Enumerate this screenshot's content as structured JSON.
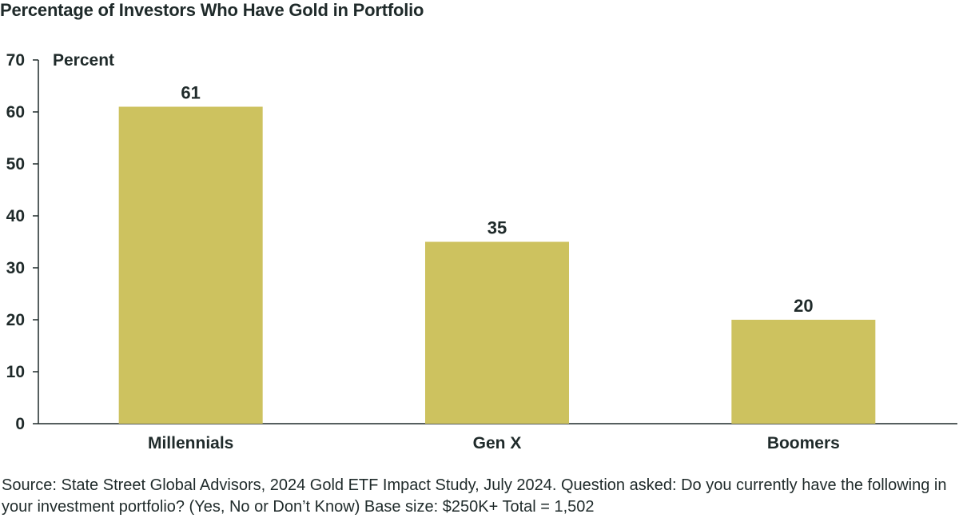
{
  "chart_data": {
    "type": "bar",
    "title": "Percentage of Investors Who Have Gold in Portfolio",
    "ylabel": "Percent",
    "xlabel": "",
    "categories": [
      "Millennials",
      "Gen X",
      "Boomers"
    ],
    "values": [
      61,
      35,
      20
    ],
    "data_labels": [
      "61",
      "35",
      "20"
    ],
    "ylim": [
      0,
      70
    ],
    "yticks": [
      "0",
      "10",
      "20",
      "30",
      "40",
      "50",
      "60",
      "70"
    ],
    "grid": false,
    "legend": "none",
    "bar_color": "#cdc25f",
    "axis_color": "#1f2a2a"
  },
  "source": "Source: State Street Global Advisors, 2024 Gold ETF Impact Study, July 2024. Question asked: Do you currently have the following in your investment portfolio? (Yes, No or Don’t Know) Base size: $250K+ Total = 1,502"
}
